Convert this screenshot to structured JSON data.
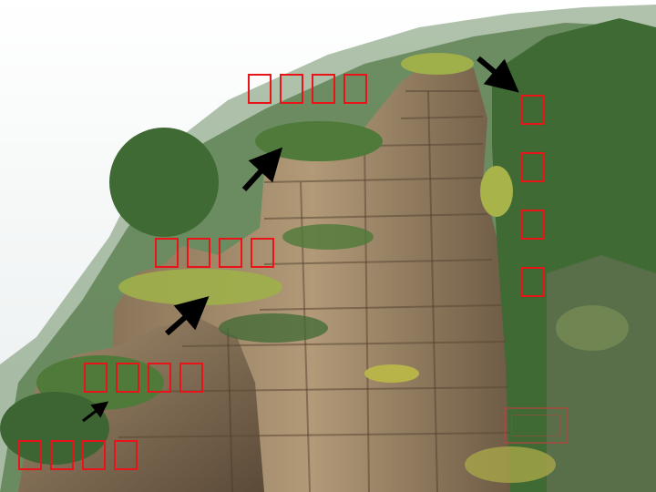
{
  "scene": {
    "description_icon": "cliff-vegetation-photo",
    "colors": {
      "sky": "#f4f6f5",
      "rock_dark": "#6e5a43",
      "rock_light": "#b8a07f",
      "vegetation": "#4f7a3a",
      "vegetation_light": "#9fb04a",
      "label_border": "#e8141a",
      "arrow": "#000000"
    }
  },
  "labels": [
    {
      "id": "top",
      "boxes": 4
    },
    {
      "id": "middle",
      "boxes": 4
    },
    {
      "id": "lower",
      "boxes": 4
    },
    {
      "id": "bottom",
      "boxes": 4
    },
    {
      "id": "right-vertical",
      "boxes": 4
    }
  ],
  "arrows": [
    {
      "id": "to-top-shrubs",
      "icon": "arrow-icon"
    },
    {
      "id": "to-middle-grass",
      "icon": "arrow-icon"
    },
    {
      "id": "to-lower-moss",
      "icon": "arrow-icon"
    },
    {
      "id": "to-right-forest",
      "icon": "arrow-icon"
    }
  ],
  "watermark": {
    "icon": "seal-stamp"
  }
}
